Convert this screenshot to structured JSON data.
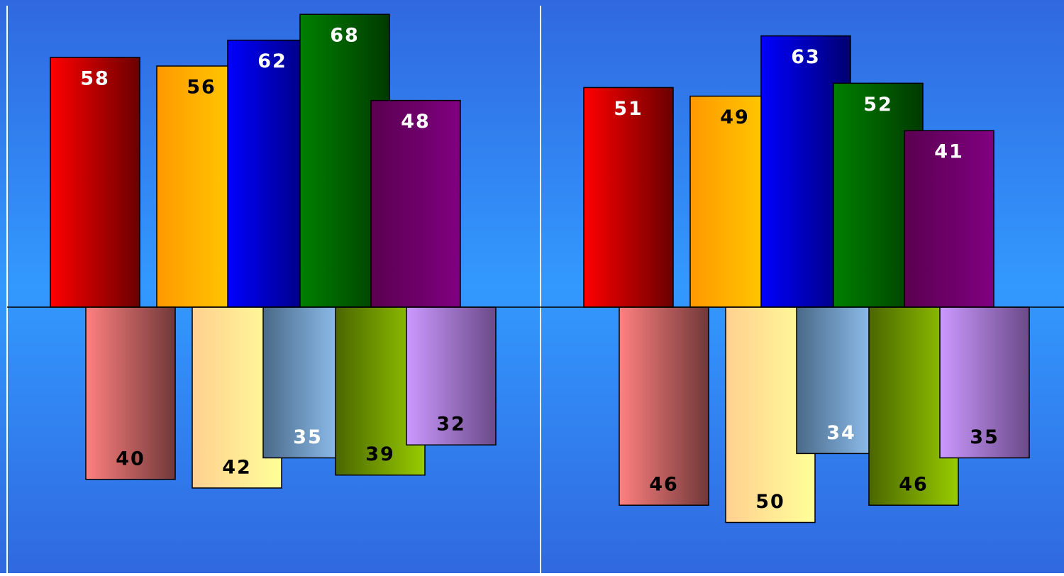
{
  "chart_data": [
    {
      "type": "updown-bar",
      "series": [
        {
          "direction": "up",
          "values": [
            58,
            56,
            62,
            68,
            48
          ],
          "color": [
            [
              "#ff0000",
              "#6a0000"
            ],
            [
              "#ff9900",
              "#ffd000"
            ],
            [
              "#0000ff",
              "#000070"
            ],
            [
              "#008000",
              "#003a00"
            ],
            [
              "#5a0050",
              "#800080"
            ]
          ],
          "label_color": [
            "#ffffff",
            "#000000",
            "#ffffff",
            "#ffffff",
            "#ffffff"
          ]
        },
        {
          "direction": "down",
          "values": [
            40,
            42,
            35,
            39,
            32
          ],
          "color": [
            [
              "#ff8080",
              "#703838"
            ],
            [
              "#ffd090",
              "#ffff99"
            ],
            [
              "#4a6a88",
              "#99ccff"
            ],
            [
              "#4a6600",
              "#99cc00"
            ],
            [
              "#cc99ff",
              "#6a4a88"
            ]
          ],
          "label_color": [
            "#000000",
            "#000000",
            "#ffffff",
            "#000000",
            "#000000"
          ]
        }
      ]
    },
    {
      "type": "updown-bar",
      "series": [
        {
          "direction": "up",
          "values": [
            51,
            49,
            63,
            52,
            41
          ],
          "color": [
            [
              "#ff0000",
              "#6a0000"
            ],
            [
              "#ff9900",
              "#ffd000"
            ],
            [
              "#0000ff",
              "#000070"
            ],
            [
              "#008000",
              "#003a00"
            ],
            [
              "#5a0050",
              "#800080"
            ]
          ],
          "label_color": [
            "#ffffff",
            "#000000",
            "#ffffff",
            "#ffffff",
            "#ffffff"
          ]
        },
        {
          "direction": "down",
          "values": [
            46,
            50,
            34,
            46,
            35
          ],
          "color": [
            [
              "#ff8080",
              "#703838"
            ],
            [
              "#ffd090",
              "#ffff99"
            ],
            [
              "#4a6a88",
              "#99ccff"
            ],
            [
              "#4a6600",
              "#99cc00"
            ],
            [
              "#cc99ff",
              "#6a4a88"
            ]
          ],
          "label_color": [
            "#000000",
            "#000000",
            "#ffffff",
            "#000000",
            "#000000"
          ]
        }
      ]
    }
  ]
}
